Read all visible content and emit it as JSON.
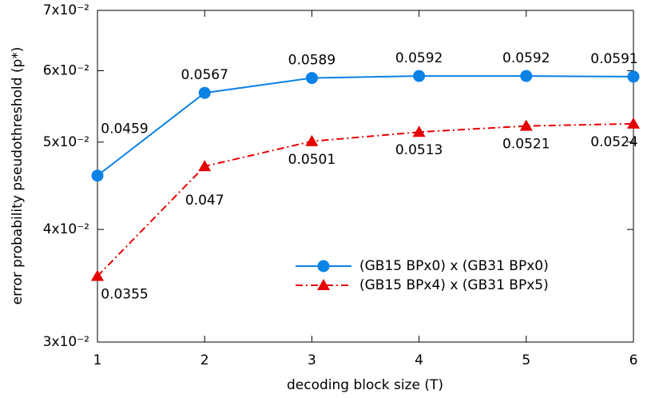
{
  "chart_data": {
    "type": "line",
    "xlabel": "decoding block size (T)",
    "ylabel": "error probability pseudothreshold (p*)",
    "x": [
      1,
      2,
      3,
      4,
      5,
      6
    ],
    "xlim": [
      1,
      6
    ],
    "xticks": [
      1,
      2,
      3,
      4,
      5,
      6
    ],
    "ylim": [
      0.03,
      0.07
    ],
    "yscale": "log",
    "yticks": [
      {
        "value": 0.03,
        "label": "3x10⁻²"
      },
      {
        "value": 0.04,
        "label": "4x10⁻²"
      },
      {
        "value": 0.05,
        "label": "5x10⁻²"
      },
      {
        "value": 0.06,
        "label": "6x10⁻²"
      },
      {
        "value": 0.07,
        "label": "7x10⁻²"
      }
    ],
    "grid": false,
    "legend": "lower right",
    "series": [
      {
        "name": "(GB15 BPx0) x (GB31 BPx0)",
        "color": "#0a82e6",
        "marker": "circle",
        "linestyle": "solid",
        "values": [
          0.0459,
          0.0567,
          0.0589,
          0.0592,
          0.0592,
          0.0591
        ]
      },
      {
        "name": "(GB15 BPx4) x (GB31 BPx5)",
        "color": "#e60000",
        "marker": "triangle",
        "linestyle": "dashdot",
        "values": [
          0.0355,
          0.047,
          0.0501,
          0.0513,
          0.0521,
          0.0524
        ]
      }
    ]
  }
}
